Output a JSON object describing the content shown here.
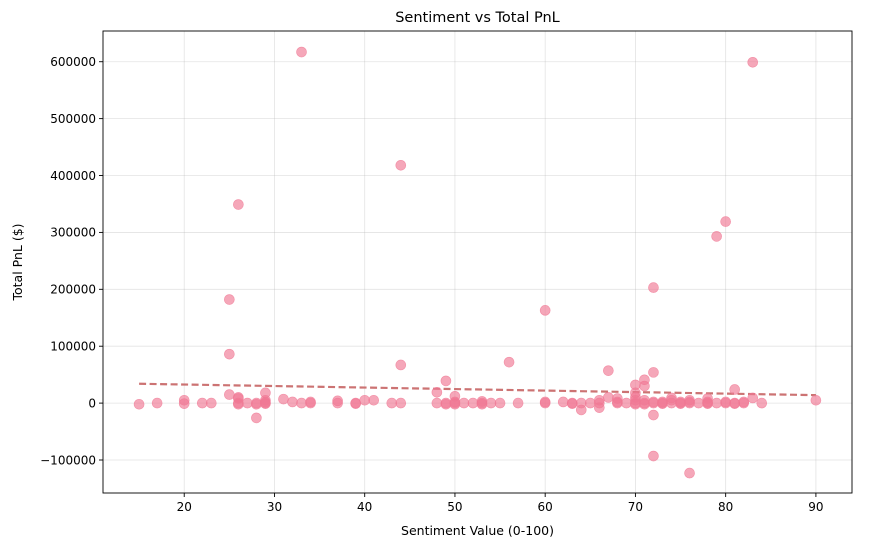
{
  "chart_data": {
    "type": "scatter",
    "title": "Sentiment vs Total PnL",
    "xlabel": "Sentiment Value (0-100)",
    "ylabel": "Total PnL ($)",
    "xlim": [
      11,
      94
    ],
    "ylim": [
      -158000,
      654000
    ],
    "xticks": [
      20,
      30,
      40,
      50,
      60,
      70,
      80,
      90
    ],
    "yticks": [
      -100000,
      0,
      100000,
      200000,
      300000,
      400000,
      500000,
      600000
    ],
    "grid": true,
    "point_color": "#f07894",
    "trend_color": "#c96b6b",
    "trendline": {
      "x": [
        15,
        90
      ],
      "y": [
        34000,
        14000
      ]
    },
    "points": [
      [
        15,
        -2000
      ],
      [
        17,
        0
      ],
      [
        20,
        -1000
      ],
      [
        20,
        5000
      ],
      [
        22,
        0
      ],
      [
        23,
        0
      ],
      [
        25,
        182000
      ],
      [
        25,
        86000
      ],
      [
        25,
        15000
      ],
      [
        26,
        349000
      ],
      [
        26,
        10000
      ],
      [
        26,
        8000
      ],
      [
        26,
        0
      ],
      [
        26,
        -2000
      ],
      [
        27,
        0
      ],
      [
        28,
        0
      ],
      [
        28,
        -2000
      ],
      [
        28,
        -26000
      ],
      [
        29,
        18000
      ],
      [
        29,
        5000
      ],
      [
        29,
        2000
      ],
      [
        29,
        0
      ],
      [
        29,
        -1000
      ],
      [
        31,
        7000
      ],
      [
        32,
        2000
      ],
      [
        33,
        617000
      ],
      [
        33,
        0
      ],
      [
        34,
        2000
      ],
      [
        34,
        0
      ],
      [
        37,
        4000
      ],
      [
        37,
        0
      ],
      [
        39,
        0
      ],
      [
        39,
        -1000
      ],
      [
        40,
        5000
      ],
      [
        41,
        5000
      ],
      [
        43,
        0
      ],
      [
        44,
        418000
      ],
      [
        44,
        67000
      ],
      [
        44,
        0
      ],
      [
        48,
        19000
      ],
      [
        48,
        0
      ],
      [
        49,
        39000
      ],
      [
        49,
        0
      ],
      [
        49,
        -2000
      ],
      [
        50,
        12000
      ],
      [
        50,
        2000
      ],
      [
        50,
        0
      ],
      [
        50,
        -2000
      ],
      [
        51,
        0
      ],
      [
        52,
        0
      ],
      [
        53,
        3000
      ],
      [
        53,
        0
      ],
      [
        53,
        -2000
      ],
      [
        54,
        0
      ],
      [
        55,
        0
      ],
      [
        56,
        72000
      ],
      [
        57,
        0
      ],
      [
        60,
        163000
      ],
      [
        60,
        2000
      ],
      [
        60,
        0
      ],
      [
        62,
        2000
      ],
      [
        63,
        0
      ],
      [
        63,
        -1000
      ],
      [
        64,
        -12000
      ],
      [
        64,
        0
      ],
      [
        65,
        0
      ],
      [
        66,
        5000
      ],
      [
        66,
        0
      ],
      [
        66,
        -8000
      ],
      [
        67,
        57000
      ],
      [
        67,
        10000
      ],
      [
        68,
        8000
      ],
      [
        68,
        2000
      ],
      [
        68,
        0
      ],
      [
        69,
        0
      ],
      [
        70,
        32000
      ],
      [
        70,
        18000
      ],
      [
        70,
        10000
      ],
      [
        70,
        5000
      ],
      [
        70,
        0
      ],
      [
        70,
        -2000
      ],
      [
        71,
        41000
      ],
      [
        71,
        30000
      ],
      [
        71,
        5000
      ],
      [
        71,
        0
      ],
      [
        71,
        -2000
      ],
      [
        72,
        203000
      ],
      [
        72,
        54000
      ],
      [
        72,
        2000
      ],
      [
        72,
        0
      ],
      [
        72,
        -21000
      ],
      [
        72,
        -93000
      ],
      [
        73,
        2000
      ],
      [
        73,
        0
      ],
      [
        73,
        -1000
      ],
      [
        74,
        9000
      ],
      [
        74,
        5000
      ],
      [
        74,
        0
      ],
      [
        75,
        2000
      ],
      [
        75,
        0
      ],
      [
        75,
        -1000
      ],
      [
        76,
        5000
      ],
      [
        76,
        2000
      ],
      [
        76,
        0
      ],
      [
        76,
        -123000
      ],
      [
        77,
        0
      ],
      [
        78,
        8000
      ],
      [
        78,
        2000
      ],
      [
        78,
        0
      ],
      [
        78,
        -1000
      ],
      [
        79,
        293000
      ],
      [
        79,
        0
      ],
      [
        80,
        319000
      ],
      [
        80,
        2000
      ],
      [
        80,
        0
      ],
      [
        81,
        24000
      ],
      [
        81,
        0
      ],
      [
        81,
        -1000
      ],
      [
        82,
        2000
      ],
      [
        82,
        0
      ],
      [
        83,
        599000
      ],
      [
        83,
        9000
      ],
      [
        84,
        0
      ],
      [
        90,
        5000
      ]
    ]
  }
}
